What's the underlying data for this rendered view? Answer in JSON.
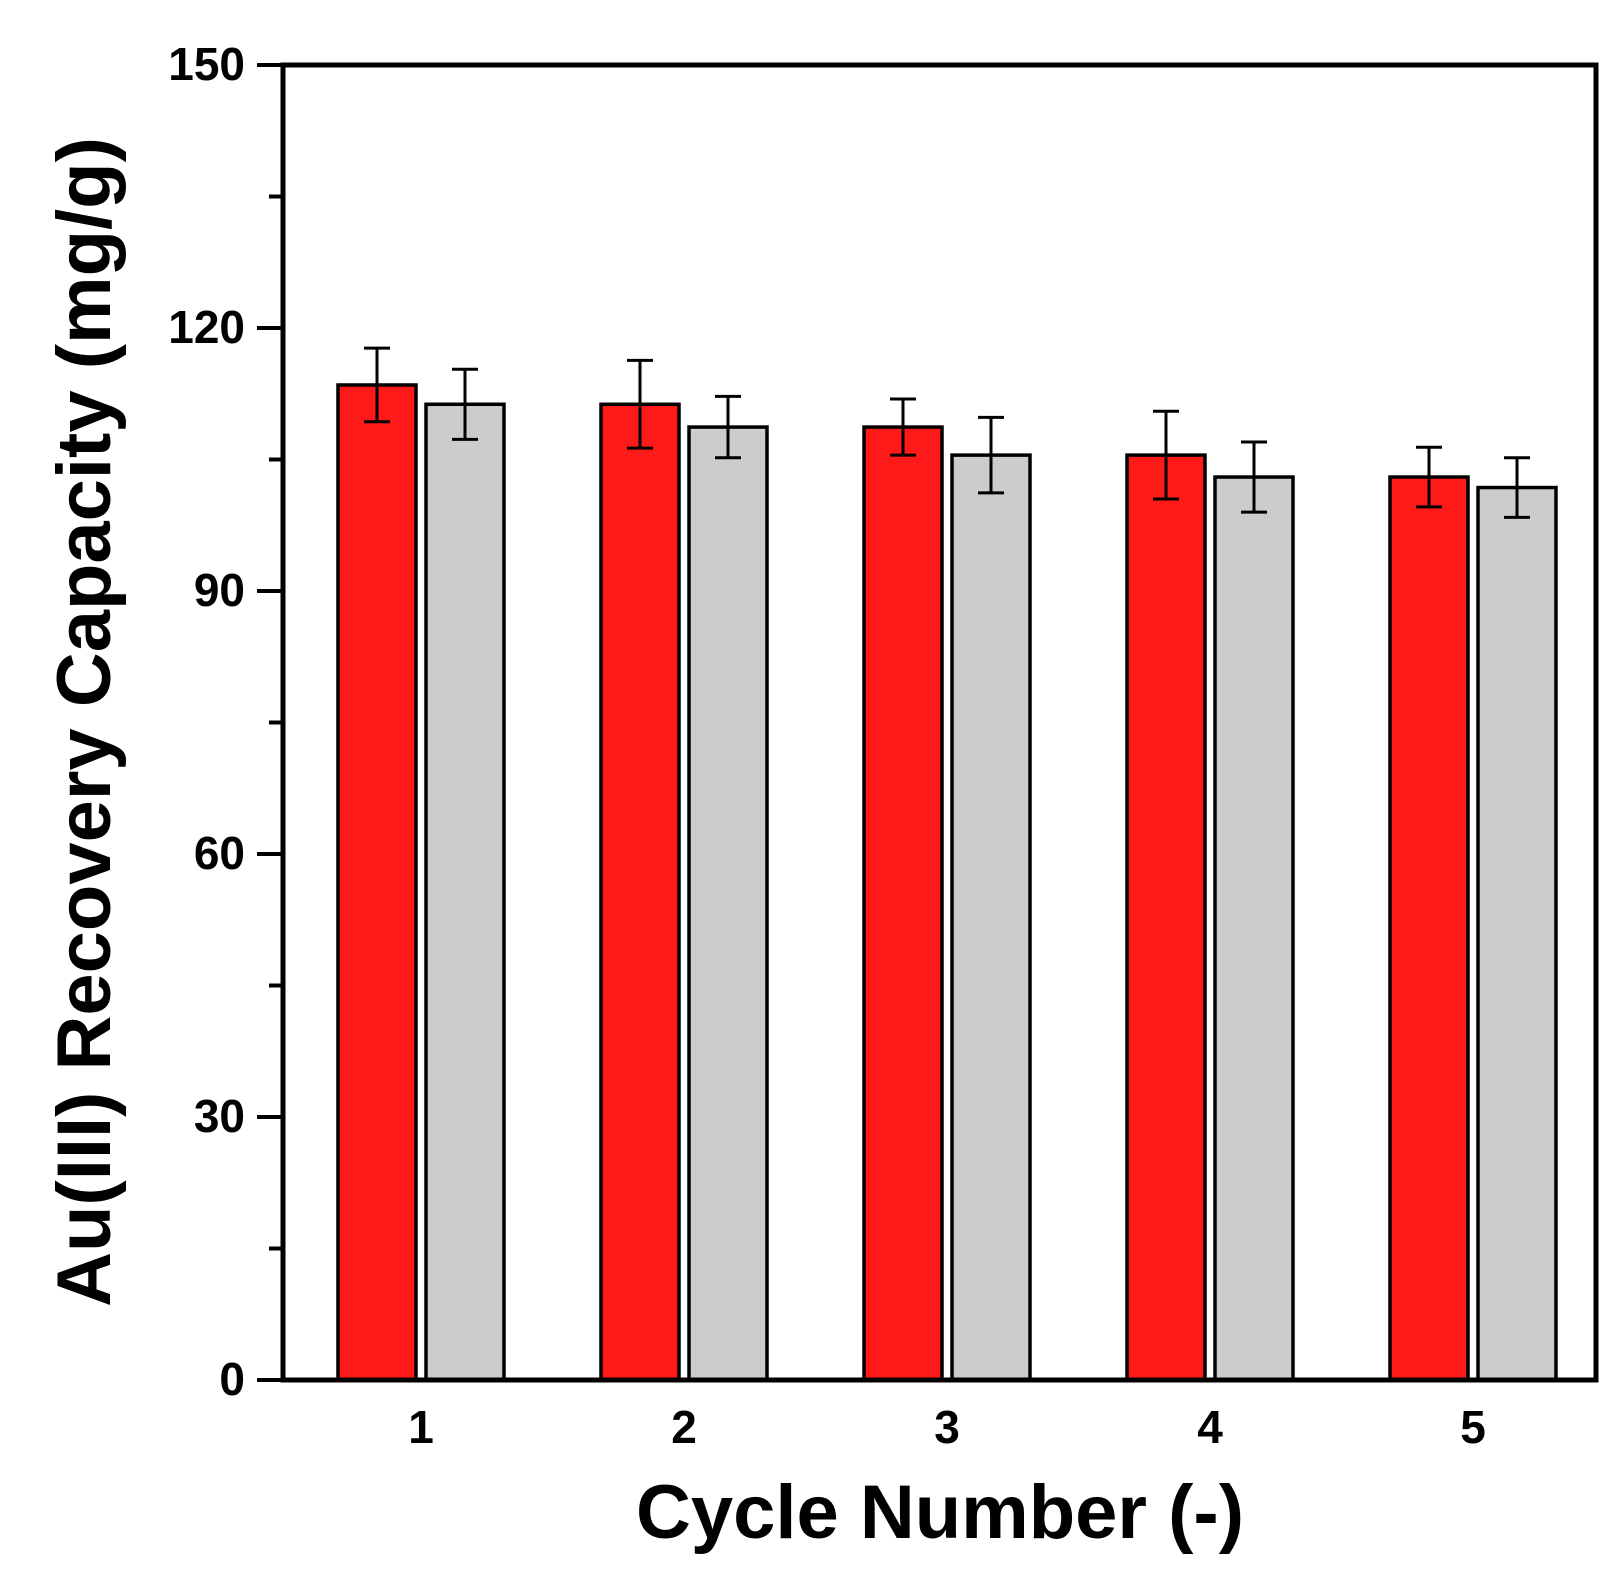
{
  "chart_data": {
    "type": "bar",
    "title": "",
    "xlabel": "Cycle Number (-)",
    "ylabel": "Au(III) Recovery Capacity (mg/g)",
    "categories": [
      "1",
      "2",
      "3",
      "4",
      "5"
    ],
    "ylim": [
      0,
      150
    ],
    "yticks": [
      "0",
      "30",
      "60",
      "90",
      "120",
      "150"
    ],
    "minor_ticks": [
      15,
      45,
      75,
      105,
      135
    ],
    "grid": false,
    "legend": null,
    "series": [
      {
        "name": "series-red",
        "color": "#ff1a1a",
        "values": [
          113.5,
          111.3,
          108.7,
          105.5,
          103.0
        ],
        "errors": [
          4.2,
          5.0,
          3.2,
          5.0,
          3.4
        ]
      },
      {
        "name": "series-gray",
        "color": "#cccccc",
        "values": [
          111.3,
          108.7,
          105.5,
          103.0,
          101.8
        ],
        "errors": [
          4.0,
          3.5,
          4.3,
          4.0,
          3.4
        ]
      }
    ]
  }
}
